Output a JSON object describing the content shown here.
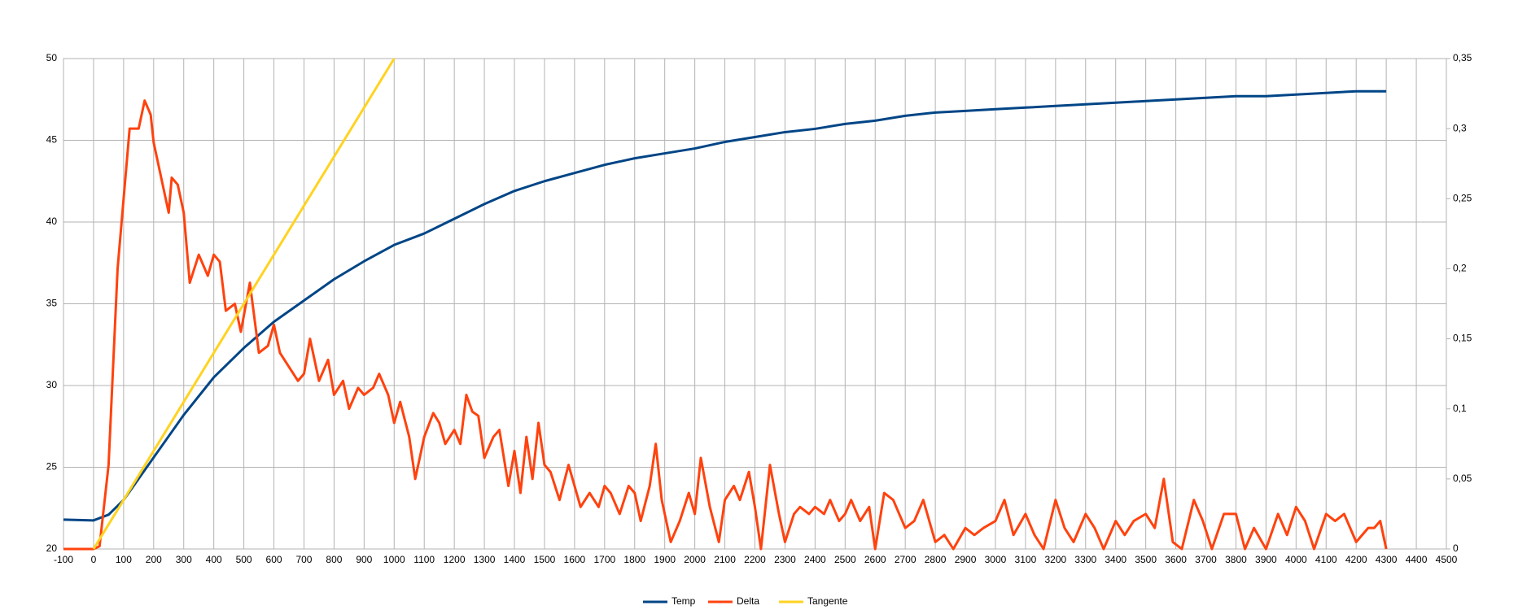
{
  "chart_data": {
    "type": "line",
    "xlim": [
      -100,
      4500
    ],
    "xticks": [
      -100,
      0,
      100,
      200,
      300,
      400,
      500,
      600,
      700,
      800,
      900,
      1000,
      1100,
      1200,
      1300,
      1400,
      1500,
      1600,
      1700,
      1800,
      1900,
      2000,
      2100,
      2200,
      2300,
      2400,
      2500,
      2600,
      2700,
      2800,
      2900,
      3000,
      3100,
      3200,
      3300,
      3400,
      3500,
      3600,
      3700,
      3800,
      3900,
      4000,
      4100,
      4200,
      4300,
      4400,
      4500
    ],
    "ylim": [
      20,
      50
    ],
    "yticks": [
      20,
      25,
      30,
      35,
      40,
      45,
      50
    ],
    "y2lim": [
      0,
      0.35
    ],
    "y2ticks": [
      0,
      {
        "value": 0.05,
        "label": "0,05"
      },
      {
        "value": 0.1,
        "label": "0,1"
      },
      {
        "value": 0.15,
        "label": "0,15"
      },
      {
        "value": 0.2,
        "label": "0,2"
      },
      {
        "value": 0.25,
        "label": "0,25"
      },
      {
        "value": 0.3,
        "label": "0,3"
      },
      {
        "value": 0.35,
        "label": "0,35"
      }
    ],
    "grid": true,
    "legend": "bottom",
    "series": [
      {
        "name": "Temp",
        "color": "#004586",
        "x": [
          -100,
          0,
          50,
          100,
          200,
          300,
          400,
          500,
          600,
          700,
          800,
          900,
          1000,
          1100,
          1200,
          1300,
          1400,
          1500,
          1600,
          1700,
          1800,
          1900,
          2000,
          2100,
          2200,
          2300,
          2400,
          2500,
          2600,
          2700,
          2800,
          2900,
          3000,
          3100,
          3200,
          3300,
          3400,
          3500,
          3600,
          3700,
          3800,
          3900,
          4000,
          4100,
          4200,
          4300
        ],
        "values": [
          21.8,
          21.75,
          22.1,
          23.0,
          25.6,
          28.2,
          30.5,
          32.3,
          33.9,
          35.2,
          36.5,
          37.6,
          38.6,
          39.3,
          40.2,
          41.1,
          41.9,
          42.5,
          43.0,
          43.5,
          43.9,
          44.2,
          44.5,
          44.9,
          45.2,
          45.5,
          45.7,
          46.0,
          46.2,
          46.5,
          46.7,
          46.8,
          46.9,
          47.0,
          47.1,
          47.2,
          47.3,
          47.4,
          47.5,
          47.6,
          47.7,
          47.7,
          47.8,
          47.9,
          48.0,
          48.0
        ]
      },
      {
        "name": "Delta",
        "color": "#ff420e",
        "axis": "y2",
        "x": [
          -100,
          -50,
          0,
          20,
          50,
          80,
          100,
          120,
          150,
          170,
          190,
          200,
          230,
          250,
          260,
          280,
          300,
          320,
          350,
          380,
          400,
          420,
          440,
          470,
          490,
          520,
          550,
          580,
          600,
          620,
          650,
          680,
          700,
          720,
          750,
          780,
          800,
          830,
          850,
          880,
          900,
          930,
          950,
          980,
          1000,
          1020,
          1050,
          1070,
          1100,
          1130,
          1150,
          1170,
          1200,
          1220,
          1240,
          1260,
          1280,
          1300,
          1330,
          1350,
          1380,
          1400,
          1420,
          1440,
          1460,
          1480,
          1500,
          1520,
          1550,
          1580,
          1600,
          1620,
          1650,
          1680,
          1700,
          1720,
          1750,
          1780,
          1800,
          1820,
          1850,
          1870,
          1890,
          1920,
          1950,
          1980,
          2000,
          2020,
          2050,
          2080,
          2100,
          2130,
          2150,
          2180,
          2200,
          2220,
          2250,
          2280,
          2300,
          2330,
          2350,
          2380,
          2400,
          2430,
          2450,
          2480,
          2500,
          2520,
          2550,
          2580,
          2600,
          2630,
          2660,
          2700,
          2730,
          2760,
          2800,
          2830,
          2860,
          2900,
          2930,
          2960,
          3000,
          3030,
          3060,
          3100,
          3130,
          3160,
          3200,
          3230,
          3260,
          3300,
          3330,
          3360,
          3400,
          3430,
          3460,
          3500,
          3530,
          3560,
          3590,
          3620,
          3660,
          3690,
          3720,
          3760,
          3800,
          3830,
          3860,
          3900,
          3940,
          3970,
          4000,
          4030,
          4060,
          4100,
          4130,
          4160,
          4200,
          4240,
          4260,
          4280,
          4300
        ],
        "values": [
          0,
          0,
          0,
          0.002,
          0.06,
          0.2,
          0.25,
          0.3,
          0.3,
          0.32,
          0.31,
          0.29,
          0.26,
          0.24,
          0.265,
          0.26,
          0.24,
          0.19,
          0.21,
          0.195,
          0.21,
          0.205,
          0.17,
          0.175,
          0.155,
          0.19,
          0.14,
          0.145,
          0.16,
          0.14,
          0.13,
          0.12,
          0.125,
          0.15,
          0.12,
          0.135,
          0.11,
          0.12,
          0.1,
          0.115,
          0.11,
          0.115,
          0.125,
          0.11,
          0.09,
          0.105,
          0.08,
          0.05,
          0.08,
          0.097,
          0.09,
          0.075,
          0.085,
          0.075,
          0.11,
          0.098,
          0.095,
          0.065,
          0.08,
          0.085,
          0.045,
          0.07,
          0.04,
          0.08,
          0.05,
          0.09,
          0.06,
          0.055,
          0.035,
          0.06,
          0.045,
          0.03,
          0.04,
          0.03,
          0.045,
          0.04,
          0.025,
          0.045,
          0.04,
          0.02,
          0.045,
          0.075,
          0.035,
          0.005,
          0.02,
          0.04,
          0.025,
          0.065,
          0.03,
          0.005,
          0.035,
          0.045,
          0.035,
          0.055,
          0.03,
          0,
          0.06,
          0.025,
          0.005,
          0.025,
          0.03,
          0.025,
          0.03,
          0.025,
          0.035,
          0.02,
          0.025,
          0.035,
          0.02,
          0.03,
          0,
          0.04,
          0.035,
          0.015,
          0.02,
          0.035,
          0.005,
          0.01,
          0,
          0.015,
          0.01,
          0.015,
          0.02,
          0.035,
          0.01,
          0.025,
          0.01,
          0,
          0.035,
          0.015,
          0.005,
          0.025,
          0.015,
          0,
          0.02,
          0.01,
          0.02,
          0.025,
          0.015,
          0.05,
          0.005,
          0,
          0.035,
          0.02,
          0,
          0.025,
          0.025,
          0,
          0.015,
          0,
          0.025,
          0.01,
          0.03,
          0.02,
          0,
          0.025,
          0.02,
          0.025,
          0.005,
          0.015,
          0.015,
          0.02,
          0
        ]
      },
      {
        "name": "Tangente",
        "color": "#ffd320",
        "x": [
          0,
          1000
        ],
        "values": [
          20,
          50
        ]
      }
    ]
  }
}
